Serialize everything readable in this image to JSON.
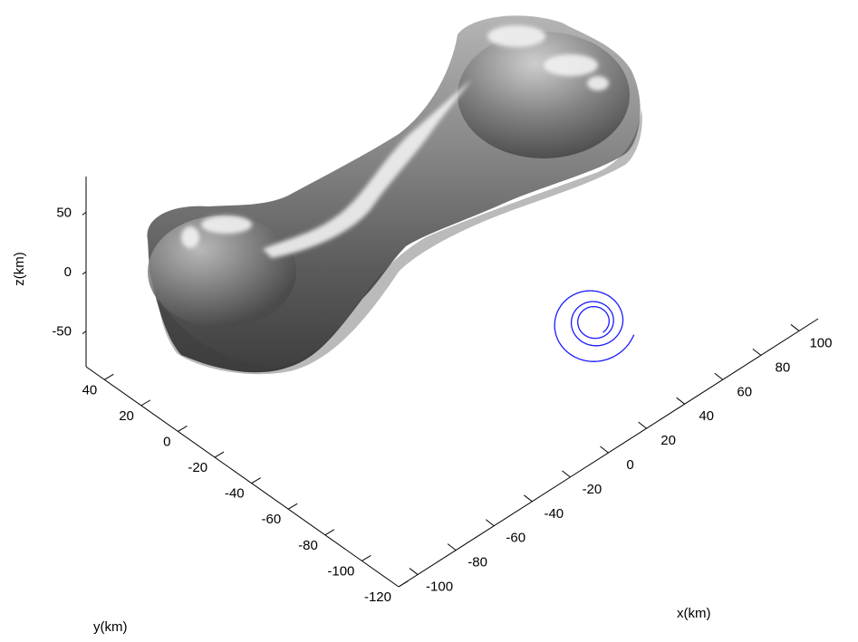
{
  "chart_data": {
    "type": "3d-surface-with-trajectory",
    "x_axis": {
      "label": "x(km)",
      "ticks": [
        -100,
        -80,
        -60,
        -40,
        -20,
        0,
        20,
        40,
        60,
        80,
        100
      ],
      "range": [
        -110,
        110
      ]
    },
    "y_axis": {
      "label": "y(km)",
      "ticks": [
        -120,
        -100,
        -80,
        -60,
        -40,
        -20,
        0,
        20,
        40
      ],
      "range": [
        -120,
        50
      ]
    },
    "z_axis": {
      "label": "z(km)",
      "ticks": [
        -50,
        0,
        50
      ],
      "range": [
        -80,
        80
      ]
    },
    "surface": {
      "description_kind": "asteroid shape model (dog-bone)",
      "color": "#7a7a7a",
      "highlight_color": "#f2f2f2"
    },
    "trajectory": {
      "color": "#1a1aff",
      "kind": "converging spiral orbit"
    },
    "grid": false,
    "legend": "none"
  }
}
